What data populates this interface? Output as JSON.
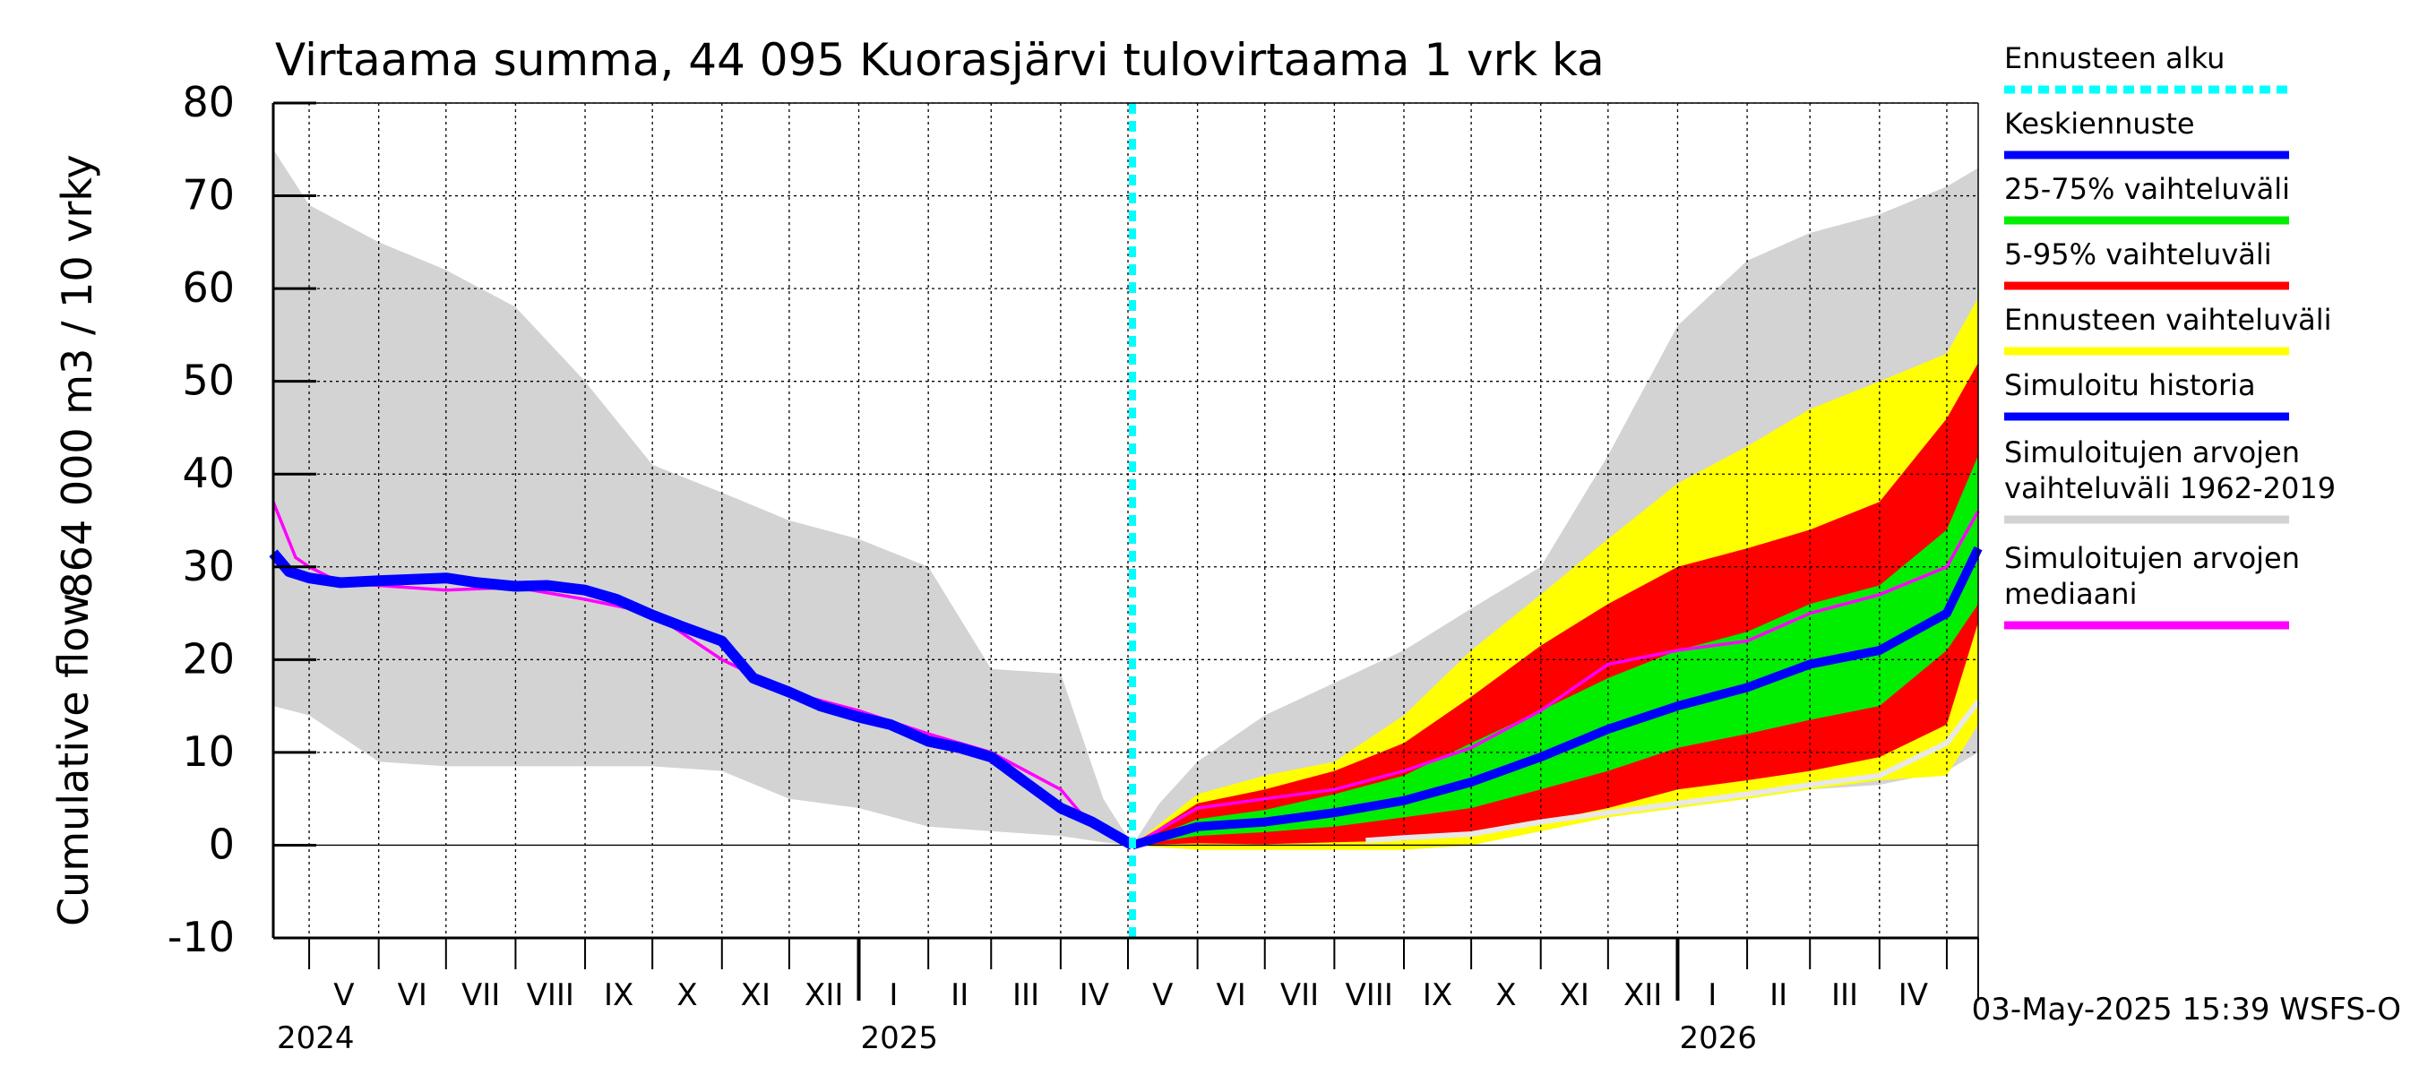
{
  "chart_data": {
    "type": "area",
    "title": "Virtaama summa, 44 095 Kuorasjärvi tulovirtaama 1 vrk ka",
    "ylabel_top": "864 000 m3 / 10 vrky",
    "ylabel_bottom": "Cumulative flow",
    "ylim": [
      -10,
      80
    ],
    "yticks": [
      -10,
      0,
      10,
      20,
      30,
      40,
      50,
      60,
      70,
      80
    ],
    "grid": true,
    "legend_position": "right",
    "forecast_start": "2025-05-03",
    "x_start": "2024-04-15",
    "x_end": "2026-05-15",
    "month_labels": [
      {
        "label": "V",
        "date": "2024-05-01"
      },
      {
        "label": "VI",
        "date": "2024-06-01"
      },
      {
        "label": "VII",
        "date": "2024-07-01"
      },
      {
        "label": "VIII",
        "date": "2024-08-01"
      },
      {
        "label": "IX",
        "date": "2024-09-01"
      },
      {
        "label": "X",
        "date": "2024-10-01"
      },
      {
        "label": "XI",
        "date": "2024-11-01"
      },
      {
        "label": "XII",
        "date": "2024-12-01"
      },
      {
        "label": "I",
        "date": "2025-01-01"
      },
      {
        "label": "II",
        "date": "2025-02-01"
      },
      {
        "label": "III",
        "date": "2025-03-01"
      },
      {
        "label": "IV",
        "date": "2025-04-01"
      },
      {
        "label": "V",
        "date": "2025-05-01"
      },
      {
        "label": "VI",
        "date": "2025-06-01"
      },
      {
        "label": "VII",
        "date": "2025-07-01"
      },
      {
        "label": "VIII",
        "date": "2025-08-01"
      },
      {
        "label": "IX",
        "date": "2025-09-01"
      },
      {
        "label": "X",
        "date": "2025-10-01"
      },
      {
        "label": "XI",
        "date": "2025-11-01"
      },
      {
        "label": "XII",
        "date": "2025-12-01"
      },
      {
        "label": "I",
        "date": "2026-01-01"
      },
      {
        "label": "II",
        "date": "2026-02-01"
      },
      {
        "label": "III",
        "date": "2026-03-01"
      },
      {
        "label": "IV",
        "date": "2026-04-01"
      },
      {
        "label": "",
        "date": "2026-05-01"
      }
    ],
    "year_labels": [
      {
        "label": "2024",
        "date": "2024-04-15"
      },
      {
        "label": "2025",
        "date": "2025-01-01"
      },
      {
        "label": "2026",
        "date": "2026-01-01"
      }
    ],
    "historical_band": {
      "name": "Simuloitujen arvojen vaihteluväli 1962-2019",
      "color": "#d3d3d3",
      "x": [
        "2024-04-15",
        "2024-05-01",
        "2024-06-01",
        "2024-07-01",
        "2024-08-01",
        "2024-09-01",
        "2024-10-01",
        "2024-11-01",
        "2024-12-01",
        "2025-01-01",
        "2025-02-01",
        "2025-03-01",
        "2025-04-01",
        "2025-04-20",
        "2025-05-03"
      ],
      "upper": [
        75,
        69,
        65,
        62,
        58,
        50,
        41,
        38,
        35,
        33,
        30,
        19,
        18.5,
        5,
        0
      ],
      "lower": [
        15,
        14,
        9,
        8.5,
        8.5,
        8.5,
        8.5,
        8,
        5,
        4,
        2,
        1.5,
        1,
        0.3,
        0
      ]
    },
    "future_band": {
      "name": "Simuloitujen arvojen vaihteluväli 1962-2019",
      "color": "#d3d3d3",
      "x": [
        "2025-05-03",
        "2025-05-15",
        "2025-06-01",
        "2025-07-01",
        "2025-08-01",
        "2025-09-01",
        "2025-10-01",
        "2025-11-01",
        "2025-12-01",
        "2026-01-01",
        "2026-02-01",
        "2026-03-01",
        "2026-04-01",
        "2026-05-01",
        "2026-05-15"
      ],
      "upper": [
        0,
        4.5,
        9,
        14,
        17.5,
        21,
        25.5,
        30,
        42,
        56,
        63,
        66,
        68,
        71,
        73
      ],
      "lower": [
        0,
        0,
        -0.5,
        -0.5,
        -0.5,
        -0.5,
        0,
        1.5,
        3,
        4,
        5,
        6,
        6.5,
        8,
        10
      ]
    },
    "forecast_range": {
      "name": "Ennusteen vaihteluväli",
      "color": "#ffff00",
      "x": [
        "2025-05-03",
        "2025-06-01",
        "2025-07-01",
        "2025-08-01",
        "2025-09-01",
        "2025-10-01",
        "2025-11-01",
        "2025-12-01",
        "2026-01-01",
        "2026-02-01",
        "2026-03-01",
        "2026-04-01",
        "2026-05-01",
        "2026-05-15"
      ],
      "upper": [
        0,
        5.5,
        7.5,
        9,
        14,
        21,
        27,
        33,
        39,
        43,
        47,
        50,
        53,
        59
      ],
      "lower": [
        0,
        -0.5,
        -0.5,
        -0.5,
        -0.5,
        0,
        1.5,
        3,
        4,
        5,
        6,
        7,
        7.5,
        13
      ]
    },
    "band_5_95": {
      "name": "5-95% vaihteluväli",
      "color": "#ff0000",
      "x": [
        "2025-05-03",
        "2025-06-01",
        "2025-07-01",
        "2025-08-01",
        "2025-09-01",
        "2025-10-01",
        "2025-11-01",
        "2025-12-01",
        "2026-01-01",
        "2026-02-01",
        "2026-03-01",
        "2026-04-01",
        "2026-05-01",
        "2026-05-15"
      ],
      "upper": [
        0,
        4.5,
        6,
        8,
        11,
        16,
        21.5,
        26,
        30,
        32,
        34,
        37,
        46,
        52
      ],
      "lower": [
        0,
        0.2,
        0.1,
        0.3,
        0.5,
        1,
        2.5,
        4,
        6,
        7,
        8,
        9.5,
        13,
        24
      ]
    },
    "band_25_75": {
      "name": "25-75% vaihteluväli",
      "color": "#00ee00",
      "x": [
        "2025-05-03",
        "2025-06-01",
        "2025-07-01",
        "2025-08-01",
        "2025-09-01",
        "2025-10-01",
        "2025-11-01",
        "2025-12-01",
        "2026-01-01",
        "2026-02-01",
        "2026-03-01",
        "2026-04-01",
        "2026-05-01",
        "2026-05-15"
      ],
      "upper": [
        0,
        2.8,
        3.8,
        5.5,
        7.5,
        11,
        14.5,
        18,
        21,
        23,
        26,
        28,
        34,
        42
      ],
      "lower": [
        0,
        1,
        1.4,
        2,
        3,
        4,
        6,
        8,
        10.5,
        12,
        13.5,
        15,
        21,
        26
      ]
    },
    "simulated_history": {
      "name": "Simuloitu historia",
      "color": "#0000ff",
      "x": [
        "2024-04-15",
        "2024-04-22",
        "2024-05-01",
        "2024-05-15",
        "2024-06-01",
        "2024-07-01",
        "2024-07-15",
        "2024-08-01",
        "2024-08-15",
        "2024-09-01",
        "2024-09-15",
        "2024-10-01",
        "2024-10-15",
        "2024-11-01",
        "2024-11-15",
        "2024-12-01",
        "2024-12-15",
        "2025-01-01",
        "2025-01-15",
        "2025-02-01",
        "2025-02-15",
        "2025-03-01",
        "2025-03-15",
        "2025-04-01",
        "2025-04-15",
        "2025-05-03"
      ],
      "y": [
        31.5,
        29.5,
        28.8,
        28.3,
        28.5,
        28.8,
        28.3,
        27.9,
        28,
        27.5,
        26.5,
        24.8,
        23.5,
        22,
        18,
        16.5,
        15,
        13.8,
        13,
        11.2,
        10.5,
        9.5,
        7,
        4,
        2.5,
        0
      ]
    },
    "forecast_mean": {
      "name": "Keskiennuste",
      "color": "#0000ff",
      "x": [
        "2025-05-03",
        "2025-06-01",
        "2025-07-01",
        "2025-08-01",
        "2025-09-01",
        "2025-10-01",
        "2025-11-01",
        "2025-12-01",
        "2026-01-01",
        "2026-02-01",
        "2026-03-01",
        "2026-04-01",
        "2026-05-01",
        "2026-05-15"
      ],
      "y": [
        0,
        2,
        2.5,
        3.5,
        4.8,
        6.8,
        9.5,
        12.5,
        15,
        17,
        19.5,
        21,
        25,
        32
      ]
    },
    "median": {
      "name": "Simuloitujen arvojen mediaani",
      "color": "#ff00ff",
      "x": [
        "2024-04-15",
        "2024-04-25",
        "2024-05-01",
        "2024-05-15",
        "2024-06-01",
        "2024-07-01",
        "2024-08-01",
        "2024-09-01",
        "2024-10-01",
        "2024-11-01",
        "2024-12-01",
        "2025-01-01",
        "2025-02-01",
        "2025-03-01",
        "2025-04-01",
        "2025-04-15",
        "2025-05-03",
        "2025-06-01",
        "2025-07-01",
        "2025-08-01",
        "2025-09-01",
        "2025-10-01",
        "2025-11-01",
        "2025-12-01",
        "2026-01-01",
        "2026-02-01",
        "2026-03-01",
        "2026-04-01",
        "2026-05-01",
        "2026-05-15"
      ],
      "y": [
        37,
        31,
        30,
        28.3,
        28,
        27.5,
        27.8,
        26.5,
        25,
        20,
        16.5,
        14.5,
        12,
        10,
        6,
        2,
        0,
        4,
        5,
        6,
        8,
        10.5,
        14.5,
        19.5,
        21,
        22,
        25,
        27,
        30,
        36
      ]
    },
    "min_line": {
      "name": "Simuloitujen arvojen vaihteluväli 1962-2019",
      "color": "#e8e8e8",
      "x": [
        "2025-08-15",
        "2025-09-01",
        "2025-10-01",
        "2025-11-01",
        "2025-12-01",
        "2026-01-01",
        "2026-02-01",
        "2026-03-01",
        "2026-04-01",
        "2026-05-01",
        "2026-05-15"
      ],
      "y": [
        0.5,
        0.8,
        1.2,
        2.5,
        3.5,
        4.5,
        5.5,
        6.5,
        7.5,
        11,
        15.5
      ]
    },
    "legend": [
      {
        "label": "Ennusteen alku",
        "color": "#00ffff",
        "style": "dotted"
      },
      {
        "label": "Keskiennuste",
        "color": "#0000ff",
        "style": "solid"
      },
      {
        "label": "25-75% vaihteluväli",
        "color": "#00ee00",
        "style": "solid"
      },
      {
        "label": "5-95% vaihteluväli",
        "color": "#ff0000",
        "style": "solid"
      },
      {
        "label": "Ennusteen vaihteluväli",
        "color": "#ffff00",
        "style": "solid"
      },
      {
        "label": "Simuloitu historia",
        "color": "#0000ff",
        "style": "solid"
      },
      {
        "label": "Simuloitujen arvojen\nvaihteluväli 1962-2019",
        "color": "#d3d3d3",
        "style": "solid"
      },
      {
        "label": "Simuloitujen arvojen\nmediaani",
        "color": "#ff00ff",
        "style": "solid"
      }
    ],
    "footer": "03-May-2025 15:39 WSFS-O"
  }
}
